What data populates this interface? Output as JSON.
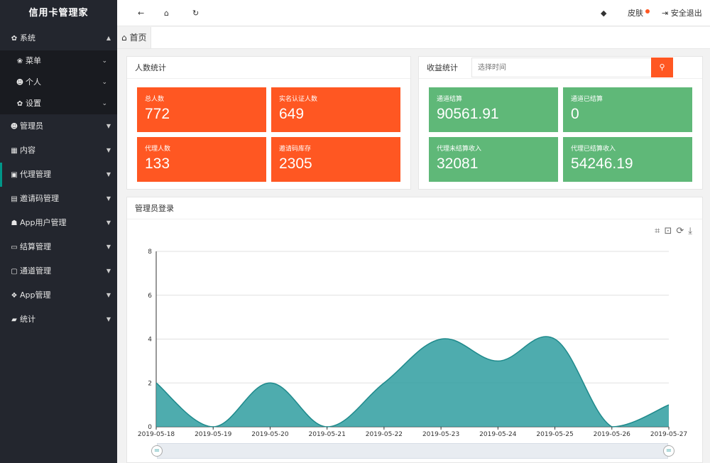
{
  "app": {
    "title": "信用卡管理家"
  },
  "sidebar": {
    "items": [
      {
        "label": "系统",
        "icon": "gear-icon"
      },
      {
        "label": "菜单",
        "icon": "paw-icon"
      },
      {
        "label": "个人",
        "icon": "user-icon"
      },
      {
        "label": "设置",
        "icon": "gear-icon"
      },
      {
        "label": "管理员",
        "icon": "user-icon"
      },
      {
        "label": "内容",
        "icon": "grid-icon"
      },
      {
        "label": "代理管理",
        "icon": "contact-icon"
      },
      {
        "label": "邀请码管理",
        "icon": "gift-icon"
      },
      {
        "label": "App用户管理",
        "icon": "user-lock-icon"
      },
      {
        "label": "结算管理",
        "icon": "monitor-icon"
      },
      {
        "label": "通道管理",
        "icon": "bus-icon"
      },
      {
        "label": "App管理",
        "icon": "dropbox-icon"
      },
      {
        "label": "统计",
        "icon": "book-icon"
      }
    ]
  },
  "topbar": {
    "skin": "皮肤",
    "logout": "安全退出"
  },
  "tabs": {
    "home": "首页"
  },
  "people": {
    "title": "人数统计",
    "stats": [
      {
        "label": "总人数",
        "value": "772"
      },
      {
        "label": "实名认证人数",
        "value": "649"
      },
      {
        "label": "代理人数",
        "value": "133"
      },
      {
        "label": "邀请码库存",
        "value": "2305"
      }
    ]
  },
  "income": {
    "title": "收益统计",
    "date_placeholder": "选择时间",
    "stats": [
      {
        "label": "通道结算",
        "value": "90561.91"
      },
      {
        "label": "通道已结算",
        "value": "0"
      },
      {
        "label": "代理未结算收入",
        "value": "32081"
      },
      {
        "label": "代理已结算收入",
        "value": "54246.19"
      }
    ]
  },
  "login_chart": {
    "title": "管理员登录"
  },
  "colors": {
    "orange": "#ff5722",
    "green": "#5fb878",
    "teal": "#2f9ea0",
    "sidebar": "#23262e"
  },
  "chart_data": {
    "type": "area",
    "x": [
      "2019-05-18",
      "2019-05-19",
      "2019-05-20",
      "2019-05-21",
      "2019-05-22",
      "2019-05-23",
      "2019-05-24",
      "2019-05-25",
      "2019-05-26",
      "2019-05-27"
    ],
    "values": [
      2,
      0,
      2,
      0,
      2,
      4,
      3,
      4,
      0,
      1
    ],
    "ylim": [
      0,
      8
    ],
    "yticks": [
      0,
      2,
      4,
      6,
      8
    ],
    "grid": true,
    "smooth": true
  }
}
